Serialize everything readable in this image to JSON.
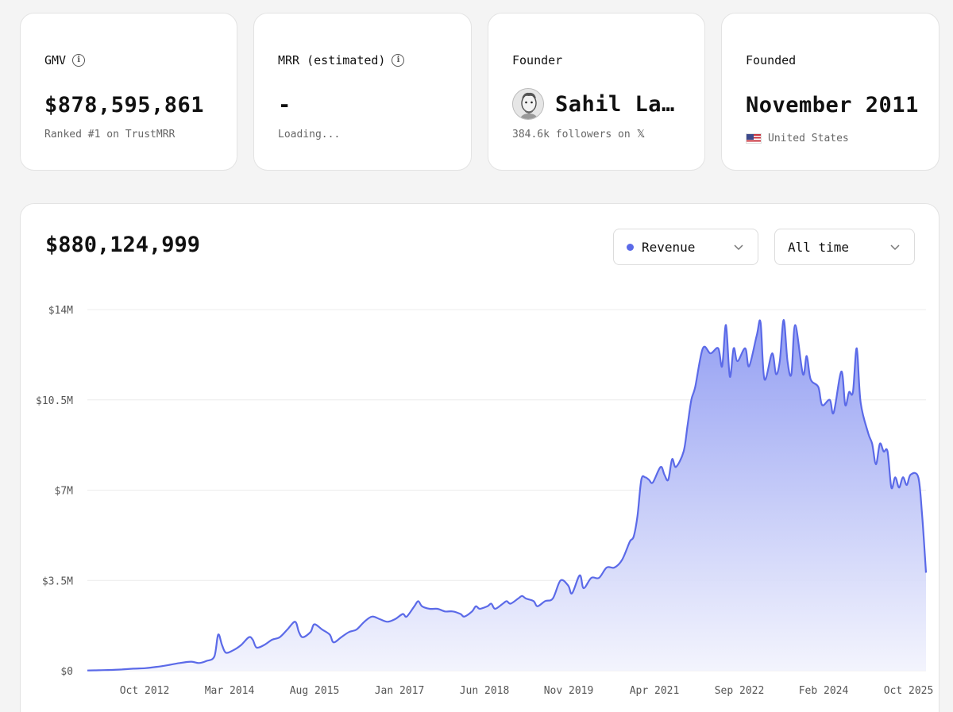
{
  "stats": {
    "gmv": {
      "label": "GMV",
      "value": "$878,595,861",
      "sub": "Ranked #1 on TrustMRR"
    },
    "mrr": {
      "label": "MRR (estimated)",
      "value": "-",
      "sub": "Loading..."
    },
    "founder": {
      "label": "Founder",
      "name": "Sahil Lavingia",
      "sub": "384.6k followers on",
      "social_icon": "x-logo-icon"
    },
    "founded": {
      "label": "Founded",
      "value": "November 2011",
      "country": "United States"
    }
  },
  "chart_panel": {
    "total": "$880,124,999",
    "metric_select": {
      "label": "Revenue",
      "color": "#5b6ae8"
    },
    "range_select": {
      "label": "All time"
    }
  },
  "colors": {
    "line": "#5b6ae8",
    "fill_top": "#8e9af2",
    "fill_bottom": "#f2f3fd",
    "grid": "#ececec"
  },
  "chart_data": {
    "type": "area",
    "title": "",
    "xlabel": "",
    "ylabel": "",
    "series": [
      {
        "name": "Revenue",
        "color": "#5b6ae8"
      }
    ],
    "x_ticks": [
      "Oct 2012",
      "Mar 2014",
      "Aug 2015",
      "Jan 2017",
      "Jun 2018",
      "Nov 2019",
      "Apr 2021",
      "Sep 2022",
      "Feb 2024",
      "Oct 2025"
    ],
    "y_ticks": [
      "$0",
      "$3.5M",
      "$7M",
      "$10.5M",
      "$14M"
    ],
    "ylim": [
      0,
      14000000
    ],
    "x_unit": "months since Apr 2011",
    "points": [
      [
        0,
        0.01
      ],
      [
        3,
        0.02
      ],
      [
        6,
        0.03
      ],
      [
        9,
        0.05
      ],
      [
        12,
        0.08
      ],
      [
        15,
        0.1
      ],
      [
        18,
        0.15
      ],
      [
        21,
        0.22
      ],
      [
        24,
        0.3
      ],
      [
        27,
        0.35
      ],
      [
        29,
        0.3
      ],
      [
        31,
        0.38
      ],
      [
        33,
        0.55
      ],
      [
        34,
        1.4
      ],
      [
        35,
        1.0
      ],
      [
        36,
        0.7
      ],
      [
        38,
        0.8
      ],
      [
        40,
        1.0
      ],
      [
        42,
        1.3
      ],
      [
        43,
        1.2
      ],
      [
        44,
        0.9
      ],
      [
        46,
        1.0
      ],
      [
        48,
        1.2
      ],
      [
        50,
        1.3
      ],
      [
        52,
        1.6
      ],
      [
        54,
        1.9
      ],
      [
        55,
        1.5
      ],
      [
        56,
        1.3
      ],
      [
        58,
        1.5
      ],
      [
        59,
        1.8
      ],
      [
        61,
        1.6
      ],
      [
        63,
        1.4
      ],
      [
        64,
        1.1
      ],
      [
        66,
        1.3
      ],
      [
        68,
        1.5
      ],
      [
        70,
        1.6
      ],
      [
        72,
        1.9
      ],
      [
        74,
        2.1
      ],
      [
        76,
        2.0
      ],
      [
        78,
        1.9
      ],
      [
        80,
        2.0
      ],
      [
        82,
        2.2
      ],
      [
        83,
        2.1
      ],
      [
        85,
        2.5
      ],
      [
        86,
        2.7
      ],
      [
        87,
        2.5
      ],
      [
        89,
        2.4
      ],
      [
        91,
        2.4
      ],
      [
        93,
        2.3
      ],
      [
        95,
        2.3
      ],
      [
        97,
        2.2
      ],
      [
        98,
        2.1
      ],
      [
        100,
        2.3
      ],
      [
        101,
        2.5
      ],
      [
        102,
        2.4
      ],
      [
        104,
        2.5
      ],
      [
        105,
        2.6
      ],
      [
        106,
        2.4
      ],
      [
        108,
        2.6
      ],
      [
        109,
        2.7
      ],
      [
        110,
        2.6
      ],
      [
        112,
        2.8
      ],
      [
        113,
        2.9
      ],
      [
        114,
        2.8
      ],
      [
        116,
        2.7
      ],
      [
        117,
        2.5
      ],
      [
        119,
        2.7
      ],
      [
        121,
        2.8
      ],
      [
        123,
        3.5
      ],
      [
        125,
        3.3
      ],
      [
        126,
        3.0
      ],
      [
        128,
        3.7
      ],
      [
        129,
        3.2
      ],
      [
        131,
        3.6
      ],
      [
        133,
        3.6
      ],
      [
        135,
        4.0
      ],
      [
        137,
        4.0
      ],
      [
        139,
        4.3
      ],
      [
        141,
        5.0
      ],
      [
        142,
        5.2
      ],
      [
        143,
        6.0
      ],
      [
        144,
        7.4
      ],
      [
        145,
        7.5
      ],
      [
        146,
        7.4
      ],
      [
        147,
        7.3
      ],
      [
        149,
        7.9
      ],
      [
        150,
        7.6
      ],
      [
        151,
        7.4
      ],
      [
        152,
        8.2
      ],
      [
        153,
        7.9
      ],
      [
        155,
        8.5
      ],
      [
        156,
        9.5
      ],
      [
        157,
        10.5
      ],
      [
        158,
        11.0
      ],
      [
        160,
        12.5
      ],
      [
        162,
        12.3
      ],
      [
        164,
        12.5
      ],
      [
        165,
        11.8
      ],
      [
        166,
        13.4
      ],
      [
        167,
        11.4
      ],
      [
        168,
        12.5
      ],
      [
        169,
        12.0
      ],
      [
        171,
        12.5
      ],
      [
        172,
        11.8
      ],
      [
        174,
        13.0
      ],
      [
        175,
        13.5
      ],
      [
        176,
        11.3
      ],
      [
        178,
        12.3
      ],
      [
        179,
        11.5
      ],
      [
        180,
        12.0
      ],
      [
        181,
        13.6
      ],
      [
        182,
        12.0
      ],
      [
        183,
        11.5
      ],
      [
        184,
        13.4
      ],
      [
        186,
        11.5
      ],
      [
        187,
        12.2
      ],
      [
        188,
        11.3
      ],
      [
        190,
        11.0
      ],
      [
        191,
        10.3
      ],
      [
        193,
        10.5
      ],
      [
        194,
        10.0
      ],
      [
        196,
        11.6
      ],
      [
        197,
        10.3
      ],
      [
        198,
        10.8
      ],
      [
        199,
        10.8
      ],
      [
        200,
        12.5
      ],
      [
        201,
        10.4
      ],
      [
        203,
        9.2
      ],
      [
        204,
        8.8
      ],
      [
        205,
        8.0
      ],
      [
        206,
        8.8
      ],
      [
        207,
        8.5
      ],
      [
        208,
        8.5
      ],
      [
        209,
        7.1
      ],
      [
        210,
        7.5
      ],
      [
        211,
        7.1
      ],
      [
        212,
        7.5
      ],
      [
        213,
        7.2
      ],
      [
        214,
        7.6
      ],
      [
        216,
        7.5
      ],
      [
        217,
        6.0
      ],
      [
        218,
        3.8
      ]
    ],
    "points_unit": "millions USD"
  }
}
